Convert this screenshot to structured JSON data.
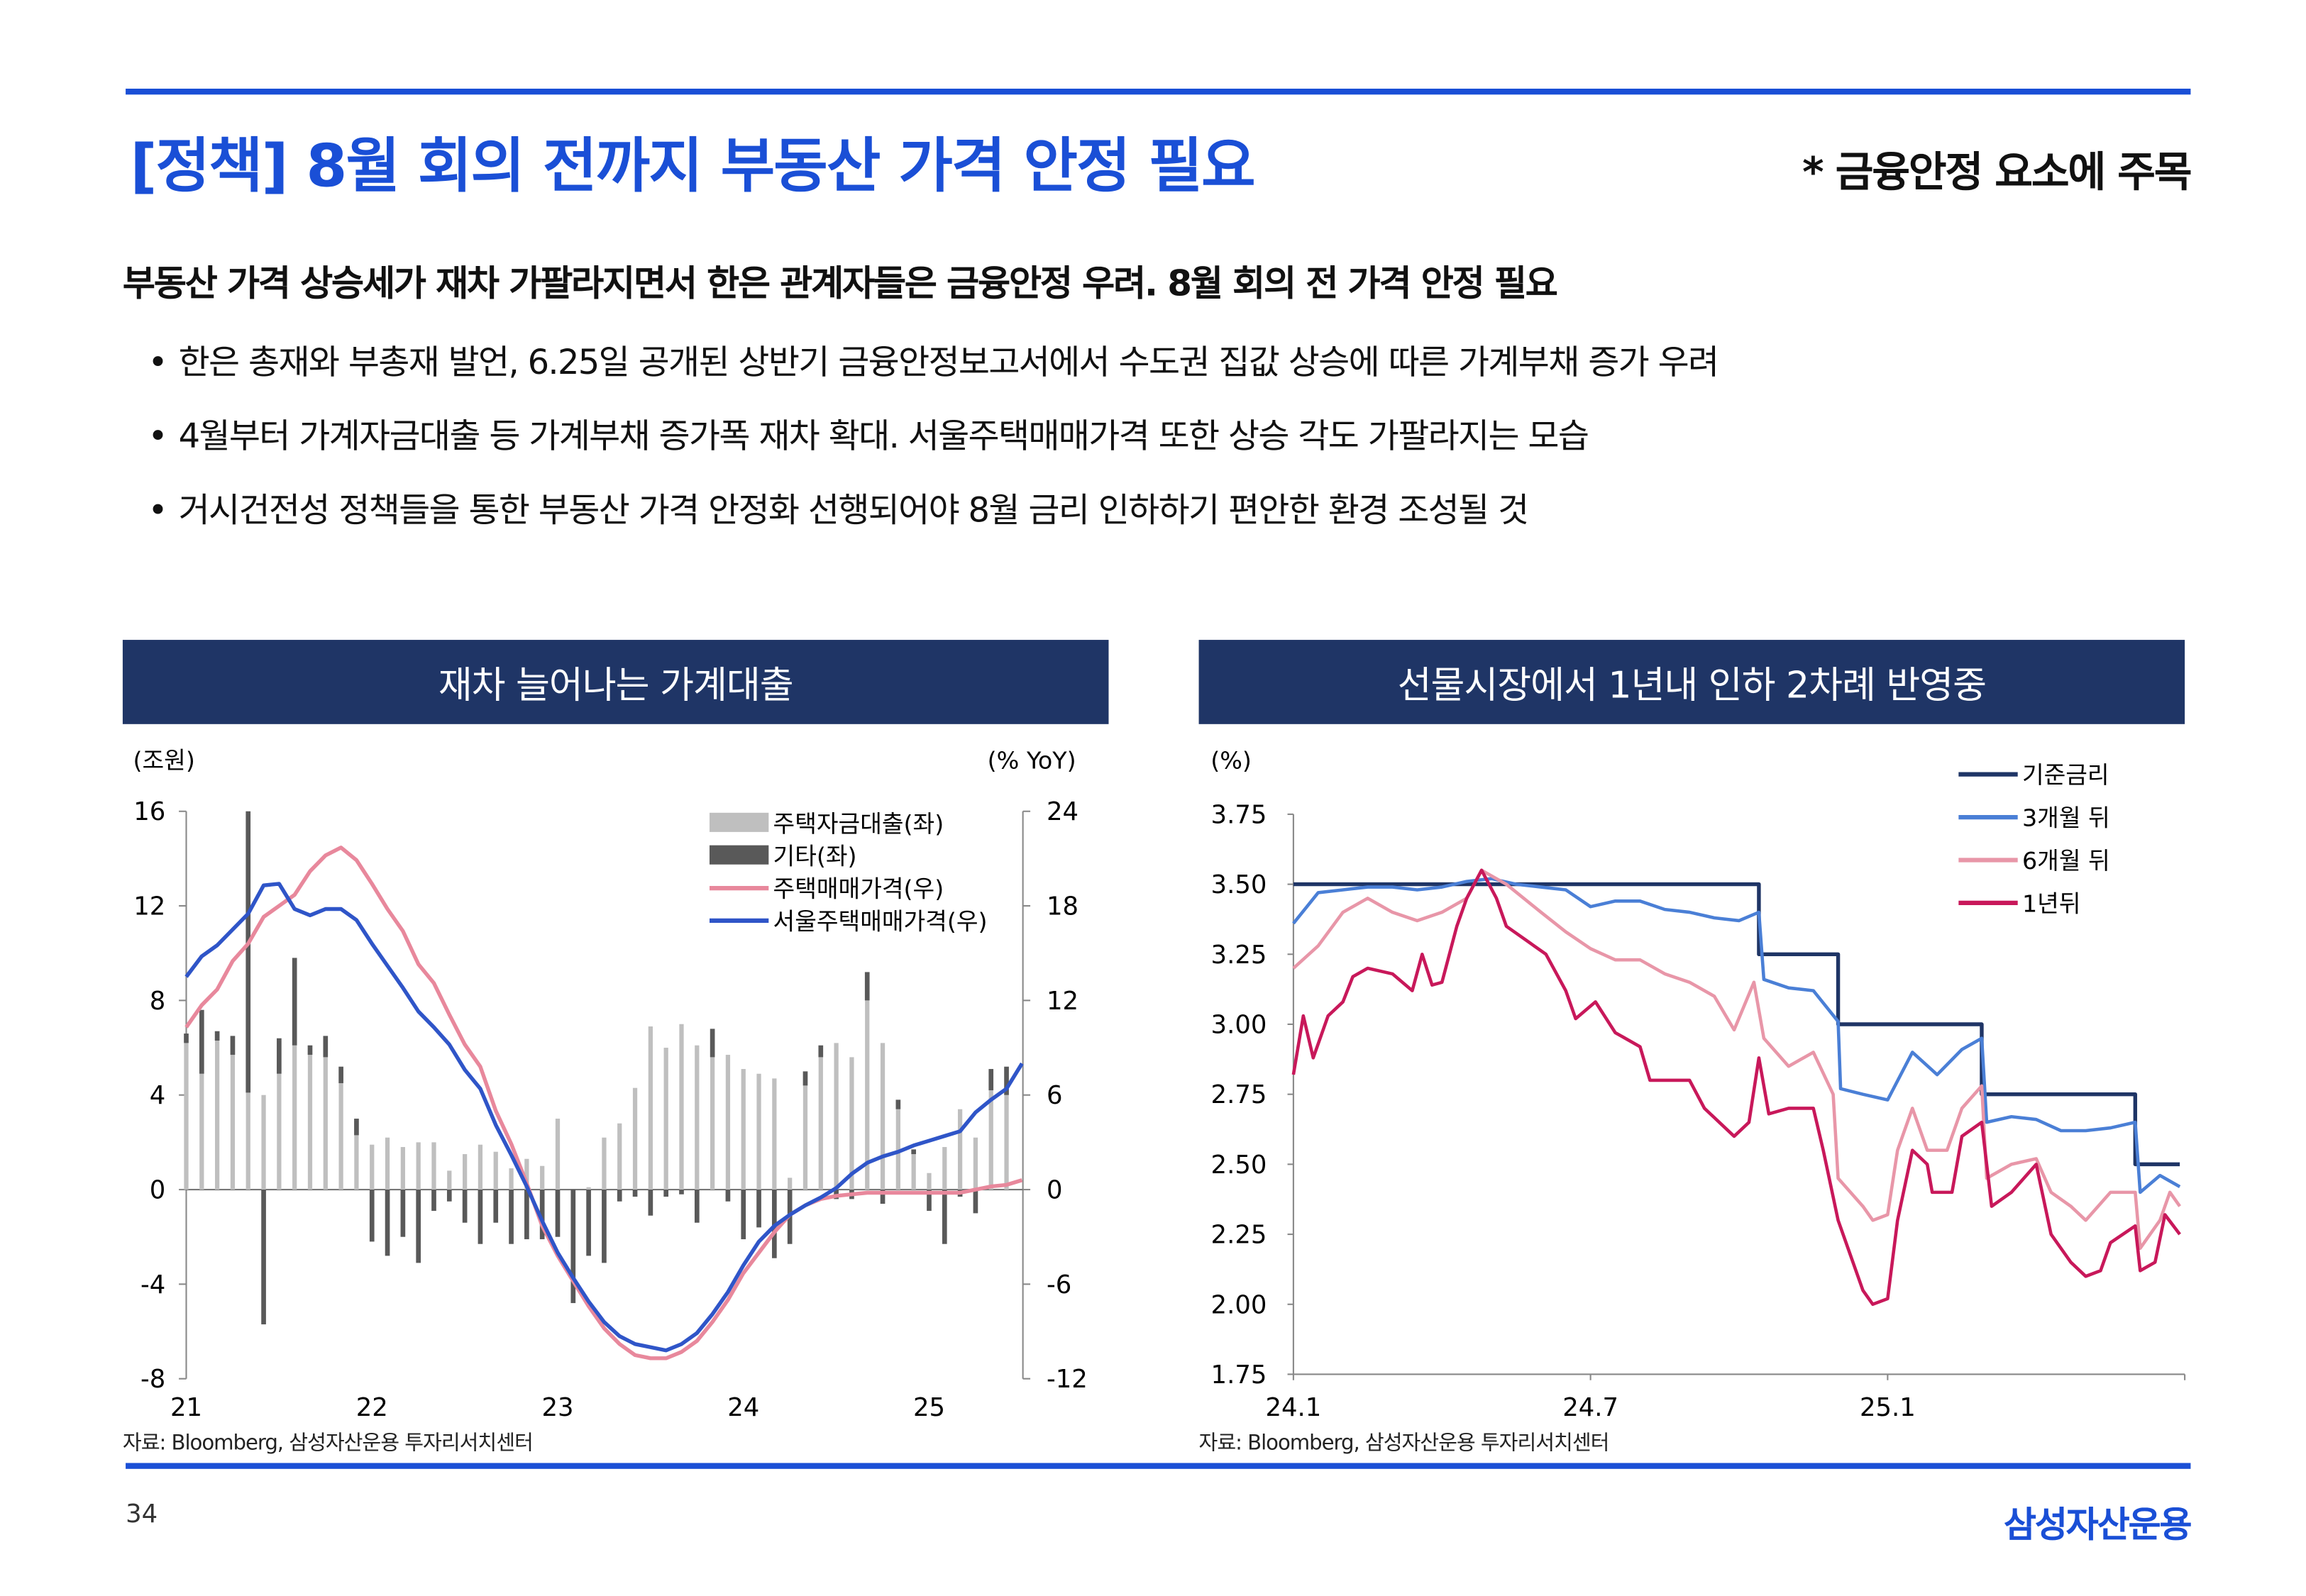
{
  "header": {
    "title": "[정책] 8월 회의 전까지 부동산 가격 안정 필요",
    "note": "* 금융안정 요소에 주목"
  },
  "summary": "부동산 가격 상승세가 재차 가팔라지면서 한은 관계자들은 금융안정 우려. 8월 회의 전 가격 안정 필요",
  "bullets": [
    "한은 총재와 부총재 발언, 6.25일 공개된 상반기 금융안정보고서에서 수도권 집값 상승에 따른 가계부채 증가 우려",
    "4월부터 가계자금대출 등 가계부채 증가폭 재차 확대. 서울주택매매가격 또한 상승 각도 가팔라지는 모습",
    "거시건전성 정책들을 통한 부동산 가격 안정화 선행되어야 8월 금리 인하하기 편안한 환경 조성될 것"
  ],
  "footer": {
    "page": "34",
    "logo": "삼성자산운용"
  },
  "colors": {
    "accent": "#1a4fd6",
    "header_bg": "#1f3566"
  },
  "chart_data": [
    {
      "type": "bar+line",
      "title": "재차 늘어나는 가계대출",
      "ylabel_left": "(조원)",
      "ylabel_right": "(% YoY)",
      "ylim_left": [
        -8,
        16
      ],
      "yticks_left": [
        "16",
        "12",
        "8",
        "4",
        "0",
        "-4",
        "-8"
      ],
      "ylim_right": [
        -12,
        24
      ],
      "yticks_right": [
        "24",
        "18",
        "12",
        "6",
        "0",
        "-6",
        "-12"
      ],
      "xticks": [
        "21",
        "22",
        "23",
        "24",
        "25"
      ],
      "x_start": "2021-01",
      "frequency": "monthly",
      "legend": [
        "주택자금대출(좌)",
        "기타(좌)",
        "주택매매가격(우)",
        "서울주택매매가격(우)"
      ],
      "source": "자료: Bloomberg, 삼성자산운용 투자리서치센터",
      "series": [
        {
          "name": "주택자금대출(좌)",
          "axis": "left",
          "kind": "bar",
          "color": "#bfbfbf",
          "values": [
            6.2,
            4.9,
            6.3,
            5.7,
            4.1,
            4.0,
            4.9,
            6.1,
            5.7,
            5.6,
            4.5,
            2.3,
            1.9,
            2.2,
            1.8,
            2.0,
            2.0,
            0.8,
            1.5,
            1.9,
            1.6,
            0.9,
            1.3,
            1.0,
            3.0,
            0.0,
            0.1,
            2.2,
            2.8,
            4.3,
            6.9,
            6.0,
            7.0,
            6.1,
            5.6,
            5.7,
            5.1,
            4.9,
            4.7,
            0.5,
            4.4,
            5.6,
            6.2,
            5.6,
            8.0,
            6.2,
            3.4,
            1.5,
            0.7,
            1.8,
            3.4,
            2.2,
            4.2,
            4.0
          ]
        },
        {
          "name": "기타(좌)",
          "axis": "left",
          "kind": "bar",
          "color": "#595959",
          "values": [
            0.4,
            2.7,
            0.4,
            0.8,
            11.9,
            -5.7,
            1.5,
            3.7,
            0.4,
            0.9,
            0.7,
            0.7,
            -2.2,
            -2.8,
            -2.0,
            -3.1,
            -0.9,
            -0.5,
            -1.4,
            -2.3,
            -1.4,
            -2.3,
            -2.1,
            -2.1,
            -2.0,
            -4.8,
            -2.8,
            -3.1,
            -0.5,
            -0.3,
            -1.1,
            -0.3,
            -0.2,
            -1.4,
            1.2,
            -0.5,
            -2.1,
            -1.6,
            -2.9,
            -2.3,
            0.6,
            0.5,
            -0.4,
            -0.4,
            1.2,
            -0.6,
            0.4,
            0.2,
            -0.9,
            -2.3,
            -0.3,
            -1.0,
            0.9,
            1.2
          ]
        },
        {
          "name": "주택매매가격(우)",
          "axis": "right",
          "kind": "line",
          "color": "#e8889c",
          "values": [
            10.3,
            11.7,
            12.7,
            14.5,
            15.6,
            17.3,
            18.0,
            18.7,
            20.2,
            21.2,
            21.7,
            20.9,
            19.4,
            17.8,
            16.4,
            14.3,
            13.1,
            11.1,
            9.2,
            7.8,
            5.0,
            2.9,
            0.4,
            -2.3,
            -4.2,
            -5.8,
            -7.4,
            -8.8,
            -9.8,
            -10.5,
            -10.7,
            -10.7,
            -10.3,
            -9.6,
            -8.4,
            -7.0,
            -5.3,
            -4.0,
            -2.7,
            -1.6,
            -1.0,
            -0.6,
            -0.4,
            -0.3,
            -0.2,
            -0.2,
            -0.2,
            -0.2,
            -0.2,
            -0.2,
            -0.2,
            0.0,
            0.2,
            0.3,
            0.6
          ]
        },
        {
          "name": "서울주택매매가격(우)",
          "axis": "right",
          "kind": "line",
          "color": "#2f55c8",
          "values": [
            13.5,
            14.8,
            15.5,
            16.5,
            17.5,
            19.3,
            19.4,
            17.8,
            17.4,
            17.8,
            17.8,
            17.1,
            15.6,
            14.2,
            12.8,
            11.3,
            10.3,
            9.2,
            7.6,
            6.4,
            4.1,
            2.2,
            0.2,
            -2.0,
            -4.0,
            -5.6,
            -7.1,
            -8.4,
            -9.3,
            -9.8,
            -10.0,
            -10.2,
            -9.8,
            -9.1,
            -7.9,
            -6.5,
            -4.8,
            -3.3,
            -2.3,
            -1.6,
            -1.0,
            -0.5,
            0.1,
            1.0,
            1.7,
            2.1,
            2.4,
            2.8,
            3.1,
            3.4,
            3.7,
            4.9,
            5.7,
            6.4,
            8.0
          ]
        }
      ]
    },
    {
      "type": "line",
      "title": "선물시장에서 1년내 인하 2차례 반영중",
      "ylabel": "(%)",
      "ylim": [
        1.75,
        3.75
      ],
      "yticks": [
        "3.75",
        "3.50",
        "3.25",
        "3.00",
        "2.75",
        "2.50",
        "2.25",
        "2.00",
        "1.75"
      ],
      "xticks": [
        {
          "label": "24.1",
          "month": 0
        },
        {
          "label": "24.7",
          "month": 6
        },
        {
          "label": "25.1",
          "month": 12
        }
      ],
      "x_unit": "months since 2024-01",
      "xlim": [
        0,
        18
      ],
      "source": "자료: Bloomberg, 삼성자산운용 투자리서치센터",
      "series": [
        {
          "name": "기준금리",
          "color": "#1f3566",
          "points": [
            [
              0,
              3.5
            ],
            [
              9.4,
              3.5
            ],
            [
              9.4,
              3.25
            ],
            [
              11.0,
              3.25
            ],
            [
              11.0,
              3.0
            ],
            [
              13.9,
              3.0
            ],
            [
              13.9,
              2.75
            ],
            [
              17.0,
              2.75
            ],
            [
              17.0,
              2.5
            ],
            [
              17.9,
              2.5
            ]
          ]
        },
        {
          "name": "3개월 뒤",
          "color": "#4a7fd6",
          "points": [
            [
              0,
              3.36
            ],
            [
              0.5,
              3.47
            ],
            [
              1,
              3.48
            ],
            [
              1.5,
              3.49
            ],
            [
              2,
              3.49
            ],
            [
              2.5,
              3.48
            ],
            [
              3,
              3.49
            ],
            [
              3.5,
              3.51
            ],
            [
              4,
              3.52
            ],
            [
              4.5,
              3.5
            ],
            [
              5,
              3.49
            ],
            [
              5.5,
              3.48
            ],
            [
              6,
              3.42
            ],
            [
              6.5,
              3.44
            ],
            [
              7,
              3.44
            ],
            [
              7.5,
              3.41
            ],
            [
              8,
              3.4
            ],
            [
              8.5,
              3.38
            ],
            [
              9,
              3.37
            ],
            [
              9.4,
              3.4
            ],
            [
              9.5,
              3.16
            ],
            [
              10,
              3.13
            ],
            [
              10.5,
              3.12
            ],
            [
              11,
              3.01
            ],
            [
              11.05,
              2.77
            ],
            [
              11.5,
              2.75
            ],
            [
              12,
              2.73
            ],
            [
              12.5,
              2.9
            ],
            [
              13,
              2.82
            ],
            [
              13.5,
              2.91
            ],
            [
              13.9,
              2.95
            ],
            [
              14,
              2.65
            ],
            [
              14.5,
              2.67
            ],
            [
              15,
              2.66
            ],
            [
              15.5,
              2.62
            ],
            [
              16,
              2.62
            ],
            [
              16.5,
              2.63
            ],
            [
              17,
              2.65
            ],
            [
              17.1,
              2.4
            ],
            [
              17.5,
              2.46
            ],
            [
              17.9,
              2.42
            ]
          ]
        },
        {
          "name": "6개월 뒤",
          "color": "#e896a8",
          "points": [
            [
              0,
              3.2
            ],
            [
              0.5,
              3.28
            ],
            [
              1,
              3.4
            ],
            [
              1.5,
              3.45
            ],
            [
              2,
              3.4
            ],
            [
              2.5,
              3.37
            ],
            [
              3,
              3.4
            ],
            [
              3.5,
              3.45
            ],
            [
              3.8,
              3.55
            ],
            [
              4.3,
              3.5
            ],
            [
              5,
              3.4
            ],
            [
              5.5,
              3.33
            ],
            [
              6,
              3.27
            ],
            [
              6.5,
              3.23
            ],
            [
              7,
              3.23
            ],
            [
              7.5,
              3.18
            ],
            [
              8,
              3.15
            ],
            [
              8.5,
              3.1
            ],
            [
              8.9,
              2.98
            ],
            [
              9.3,
              3.15
            ],
            [
              9.5,
              2.95
            ],
            [
              10,
              2.85
            ],
            [
              10.5,
              2.9
            ],
            [
              10.9,
              2.75
            ],
            [
              11,
              2.45
            ],
            [
              11.5,
              2.35
            ],
            [
              11.7,
              2.3
            ],
            [
              12,
              2.32
            ],
            [
              12.2,
              2.55
            ],
            [
              12.5,
              2.7
            ],
            [
              12.8,
              2.55
            ],
            [
              13.2,
              2.55
            ],
            [
              13.5,
              2.7
            ],
            [
              13.9,
              2.78
            ],
            [
              14,
              2.45
            ],
            [
              14.5,
              2.5
            ],
            [
              15,
              2.52
            ],
            [
              15.3,
              2.4
            ],
            [
              15.7,
              2.35
            ],
            [
              16,
              2.3
            ],
            [
              16.5,
              2.4
            ],
            [
              17,
              2.4
            ],
            [
              17.1,
              2.2
            ],
            [
              17.5,
              2.3
            ],
            [
              17.7,
              2.4
            ],
            [
              17.9,
              2.35
            ]
          ]
        },
        {
          "name": "1년뒤",
          "color": "#c8185a",
          "points": [
            [
              0,
              2.82
            ],
            [
              0.2,
              3.03
            ],
            [
              0.4,
              2.88
            ],
            [
              0.7,
              3.03
            ],
            [
              1,
              3.08
            ],
            [
              1.2,
              3.17
            ],
            [
              1.5,
              3.2
            ],
            [
              2,
              3.18
            ],
            [
              2.4,
              3.12
            ],
            [
              2.6,
              3.25
            ],
            [
              2.8,
              3.14
            ],
            [
              3,
              3.15
            ],
            [
              3.3,
              3.35
            ],
            [
              3.5,
              3.45
            ],
            [
              3.8,
              3.55
            ],
            [
              4.1,
              3.45
            ],
            [
              4.3,
              3.35
            ],
            [
              4.7,
              3.3
            ],
            [
              5.1,
              3.25
            ],
            [
              5.5,
              3.12
            ],
            [
              5.7,
              3.02
            ],
            [
              6.1,
              3.08
            ],
            [
              6.5,
              2.97
            ],
            [
              7,
              2.92
            ],
            [
              7.2,
              2.8
            ],
            [
              7.5,
              2.8
            ],
            [
              8,
              2.8
            ],
            [
              8.3,
              2.7
            ],
            [
              8.6,
              2.65
            ],
            [
              8.9,
              2.6
            ],
            [
              9.2,
              2.65
            ],
            [
              9.4,
              2.88
            ],
            [
              9.6,
              2.68
            ],
            [
              10,
              2.7
            ],
            [
              10.5,
              2.7
            ],
            [
              10.7,
              2.55
            ],
            [
              11,
              2.3
            ],
            [
              11.2,
              2.2
            ],
            [
              11.5,
              2.05
            ],
            [
              11.7,
              2.0
            ],
            [
              12,
              2.02
            ],
            [
              12.2,
              2.3
            ],
            [
              12.5,
              2.55
            ],
            [
              12.8,
              2.5
            ],
            [
              12.9,
              2.4
            ],
            [
              13.3,
              2.4
            ],
            [
              13.5,
              2.6
            ],
            [
              13.9,
              2.65
            ],
            [
              14.1,
              2.35
            ],
            [
              14.5,
              2.4
            ],
            [
              15,
              2.5
            ],
            [
              15.3,
              2.25
            ],
            [
              15.7,
              2.15
            ],
            [
              16,
              2.1
            ],
            [
              16.3,
              2.12
            ],
            [
              16.5,
              2.22
            ],
            [
              17,
              2.28
            ],
            [
              17.1,
              2.12
            ],
            [
              17.4,
              2.15
            ],
            [
              17.6,
              2.32
            ],
            [
              17.9,
              2.25
            ]
          ]
        }
      ]
    }
  ]
}
